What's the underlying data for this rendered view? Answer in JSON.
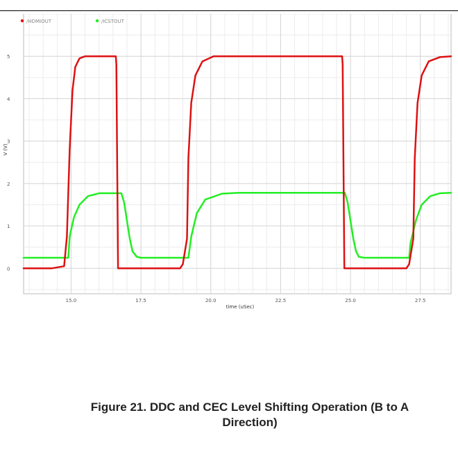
{
  "caption": {
    "line1": "Figure 21. DDC and CEC Level Shifting Operation (B to A",
    "line2": "Direction)"
  },
  "chart_data": {
    "type": "line",
    "title": "",
    "xlabel": "time (uSec)",
    "ylabel": "V (V)",
    "xlim": [
      13.3,
      28.6
    ],
    "ylim": [
      -0.6,
      6.0
    ],
    "xticks": [
      15.0,
      17.5,
      20.0,
      22.5,
      25.0,
      27.5
    ],
    "xtick_labels": [
      "15.0",
      "17.5",
      "20.0",
      "22.5",
      "25.0",
      "27.5"
    ],
    "yticks": [
      0,
      1,
      2,
      3,
      4,
      5
    ],
    "ytick_labels": [
      "0",
      "1",
      "2",
      "3",
      "4",
      "5"
    ],
    "grid": true,
    "legend_position": "top-left",
    "series": [
      {
        "name": "/HDMIOUT",
        "color": "#dd1111",
        "x": [
          13.3,
          14.3,
          14.75,
          14.85,
          14.95,
          15.05,
          15.15,
          15.3,
          15.5,
          16.6,
          16.62,
          16.68,
          17.3,
          18.9,
          19.0,
          19.15,
          19.2,
          19.3,
          19.45,
          19.7,
          20.1,
          24.7,
          24.72,
          24.78,
          25.4,
          27.0,
          27.1,
          27.25,
          27.3,
          27.4,
          27.55,
          27.8,
          28.2,
          28.6
        ],
        "y": [
          0,
          0,
          0.05,
          0.75,
          2.8,
          4.2,
          4.75,
          4.95,
          5.0,
          5.0,
          4.8,
          0,
          0,
          0,
          0.1,
          0.7,
          2.6,
          3.9,
          4.55,
          4.88,
          5.0,
          5.0,
          4.8,
          0,
          0,
          0,
          0.1,
          0.7,
          2.6,
          3.9,
          4.55,
          4.88,
          4.98,
          5.0
        ]
      },
      {
        "name": "/ICSTOUT",
        "color": "#22ee22",
        "x": [
          13.3,
          14.9,
          14.95,
          15.1,
          15.3,
          15.6,
          16.0,
          16.8,
          16.9,
          17.1,
          17.2,
          17.35,
          17.5,
          19.2,
          19.3,
          19.5,
          19.8,
          20.4,
          21.0,
          24.8,
          24.9,
          25.1,
          25.2,
          25.3,
          25.5,
          27.1,
          27.15,
          27.35,
          27.55,
          27.85,
          28.2,
          28.6
        ],
        "y": [
          0.25,
          0.25,
          0.75,
          1.2,
          1.5,
          1.7,
          1.77,
          1.77,
          1.55,
          0.7,
          0.4,
          0.27,
          0.25,
          0.25,
          0.75,
          1.3,
          1.62,
          1.76,
          1.78,
          1.78,
          1.55,
          0.7,
          0.4,
          0.27,
          0.25,
          0.25,
          0.6,
          1.15,
          1.5,
          1.7,
          1.77,
          1.78
        ]
      }
    ]
  }
}
